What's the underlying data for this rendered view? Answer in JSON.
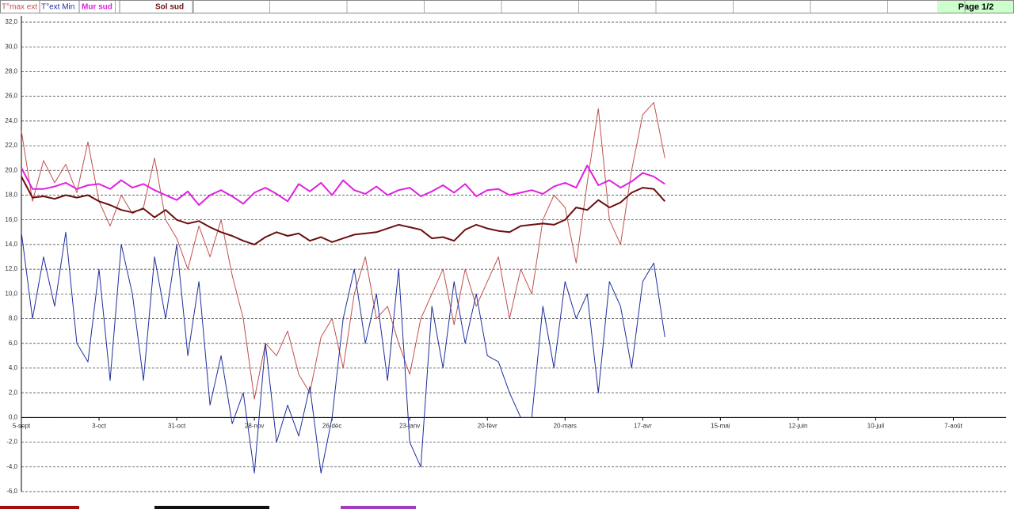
{
  "chart_data": {
    "type": "line",
    "page_label": "Page  1/2",
    "x": [
      0,
      4,
      8,
      12,
      16,
      20,
      24,
      28,
      32,
      36,
      40,
      44,
      48,
      52,
      56,
      60,
      64,
      68,
      72,
      76,
      80,
      84,
      88,
      92,
      96,
      100,
      104,
      108,
      112,
      116,
      120,
      124,
      128,
      132,
      136,
      140,
      144,
      148,
      152,
      156,
      160,
      164,
      168,
      172,
      176,
      180,
      184,
      188,
      192,
      196,
      200,
      204,
      208,
      212,
      216,
      220,
      224,
      228,
      232
    ],
    "xlim": [
      0,
      355
    ],
    "xticks": [
      {
        "value": 0,
        "label": "5-sept"
      },
      {
        "value": 28,
        "label": "3-oct"
      },
      {
        "value": 56,
        "label": "31-oct"
      },
      {
        "value": 84,
        "label": "28-nov"
      },
      {
        "value": 112,
        "label": "26-déc"
      },
      {
        "value": 140,
        "label": "23-janv"
      },
      {
        "value": 168,
        "label": "20-févr"
      },
      {
        "value": 196,
        "label": "20-mars"
      },
      {
        "value": 224,
        "label": "17-avr"
      },
      {
        "value": 252,
        "label": "15-mai"
      },
      {
        "value": 280,
        "label": "12-juin"
      },
      {
        "value": 308,
        "label": "10-juil"
      },
      {
        "value": 336,
        "label": "7-août"
      }
    ],
    "ylim": [
      -6,
      32
    ],
    "yticks": [
      {
        "value": -6,
        "label": "-6,0"
      },
      {
        "value": -4,
        "label": "-4,0"
      },
      {
        "value": -2,
        "label": "-2,0"
      },
      {
        "value": 0,
        "label": "0,0"
      },
      {
        "value": 2,
        "label": "2,0"
      },
      {
        "value": 4,
        "label": "4,0"
      },
      {
        "value": 6,
        "label": "6,0"
      },
      {
        "value": 8,
        "label": "8,0"
      },
      {
        "value": 10,
        "label": "10,0"
      },
      {
        "value": 12,
        "label": "12,0"
      },
      {
        "value": 14,
        "label": "14,0"
      },
      {
        "value": 16,
        "label": "16,0"
      },
      {
        "value": 18,
        "label": "18,0"
      },
      {
        "value": 20,
        "label": "20,0"
      },
      {
        "value": 22,
        "label": "22,0"
      },
      {
        "value": 24,
        "label": "24,0"
      },
      {
        "value": 26,
        "label": "26,0"
      },
      {
        "value": 28,
        "label": "28,0"
      },
      {
        "value": 30,
        "label": "30,0"
      },
      {
        "value": 32,
        "label": "32,0"
      }
    ],
    "grid": true,
    "series": [
      {
        "name": "T°max ext",
        "color": "#c0504d",
        "width": 1,
        "values": [
          23.2,
          17.5,
          20.8,
          19.0,
          20.5,
          18.2,
          22.3,
          17.5,
          15.5,
          18.0,
          16.5,
          17.0,
          21.0,
          16.0,
          14.5,
          12.0,
          15.5,
          13.0,
          16.0,
          11.5,
          8.0,
          1.5,
          6.0,
          5.0,
          7.0,
          3.5,
          2.0,
          6.5,
          8.0,
          4.0,
          10.0,
          13.0,
          8.0,
          9.0,
          6.0,
          3.5,
          8.0,
          10.0,
          12.0,
          7.5,
          12.0,
          9.0,
          11.0,
          13.0,
          8.0,
          12.0,
          10.0,
          16.0,
          18.0,
          17.0,
          12.5,
          19.0,
          25.0,
          16.0,
          14.0,
          20.0,
          24.5,
          25.5,
          21.0
        ]
      },
      {
        "name": "T°ext Min",
        "color": "#1f2f9e",
        "width": 1,
        "values": [
          15.0,
          8.0,
          13.0,
          9.0,
          15.0,
          6.0,
          4.5,
          12.0,
          3.0,
          14.0,
          10.0,
          3.0,
          13.0,
          8.0,
          14.0,
          5.0,
          11.0,
          1.0,
          5.0,
          -0.5,
          2.0,
          -4.5,
          6.0,
          -2.0,
          1.0,
          -1.5,
          2.5,
          -4.5,
          0.0,
          8.0,
          12.0,
          6.0,
          10.0,
          3.0,
          12.0,
          -2.0,
          -4.0,
          9.0,
          4.0,
          11.0,
          6.0,
          10.0,
          5.0,
          4.5,
          2.0,
          0.0,
          0.0,
          9.0,
          4.0,
          11.0,
          8.0,
          10.0,
          2.0,
          11.0,
          9.0,
          4.0,
          11.0,
          12.5,
          6.5
        ]
      },
      {
        "name": "Mur sud",
        "color": "#e020e0",
        "width": 2,
        "values": [
          20.2,
          18.5,
          18.5,
          18.7,
          19.0,
          18.5,
          18.8,
          18.9,
          18.5,
          19.2,
          18.6,
          18.9,
          18.4,
          18.0,
          17.6,
          18.3,
          17.2,
          18.0,
          18.4,
          17.9,
          17.3,
          18.2,
          18.6,
          18.1,
          17.5,
          18.9,
          18.3,
          19.0,
          18.0,
          19.2,
          18.4,
          18.1,
          18.7,
          18.0,
          18.4,
          18.6,
          17.9,
          18.3,
          18.8,
          18.2,
          18.9,
          17.9,
          18.4,
          18.5,
          18.0,
          18.2,
          18.4,
          18.1,
          18.7,
          19.0,
          18.6,
          20.4,
          18.8,
          19.2,
          18.6,
          19.1,
          19.8,
          19.5,
          18.9
        ]
      },
      {
        "name": "Sol sud",
        "color": "#6b0f0f",
        "width": 2,
        "values": [
          19.5,
          17.8,
          17.9,
          17.7,
          18.0,
          17.8,
          18.0,
          17.5,
          17.2,
          16.8,
          16.6,
          16.9,
          16.2,
          16.8,
          16.0,
          15.7,
          15.9,
          15.4,
          15.0,
          14.7,
          14.3,
          14.0,
          14.6,
          15.0,
          14.7,
          14.9,
          14.3,
          14.6,
          14.2,
          14.5,
          14.8,
          14.9,
          15.0,
          15.3,
          15.6,
          15.4,
          15.2,
          14.5,
          14.6,
          14.3,
          15.2,
          15.6,
          15.3,
          15.1,
          15.0,
          15.5,
          15.6,
          15.7,
          15.6,
          16.0,
          17.0,
          16.8,
          17.6,
          17.0,
          17.4,
          18.2,
          18.6,
          18.5,
          17.5
        ]
      }
    ]
  }
}
